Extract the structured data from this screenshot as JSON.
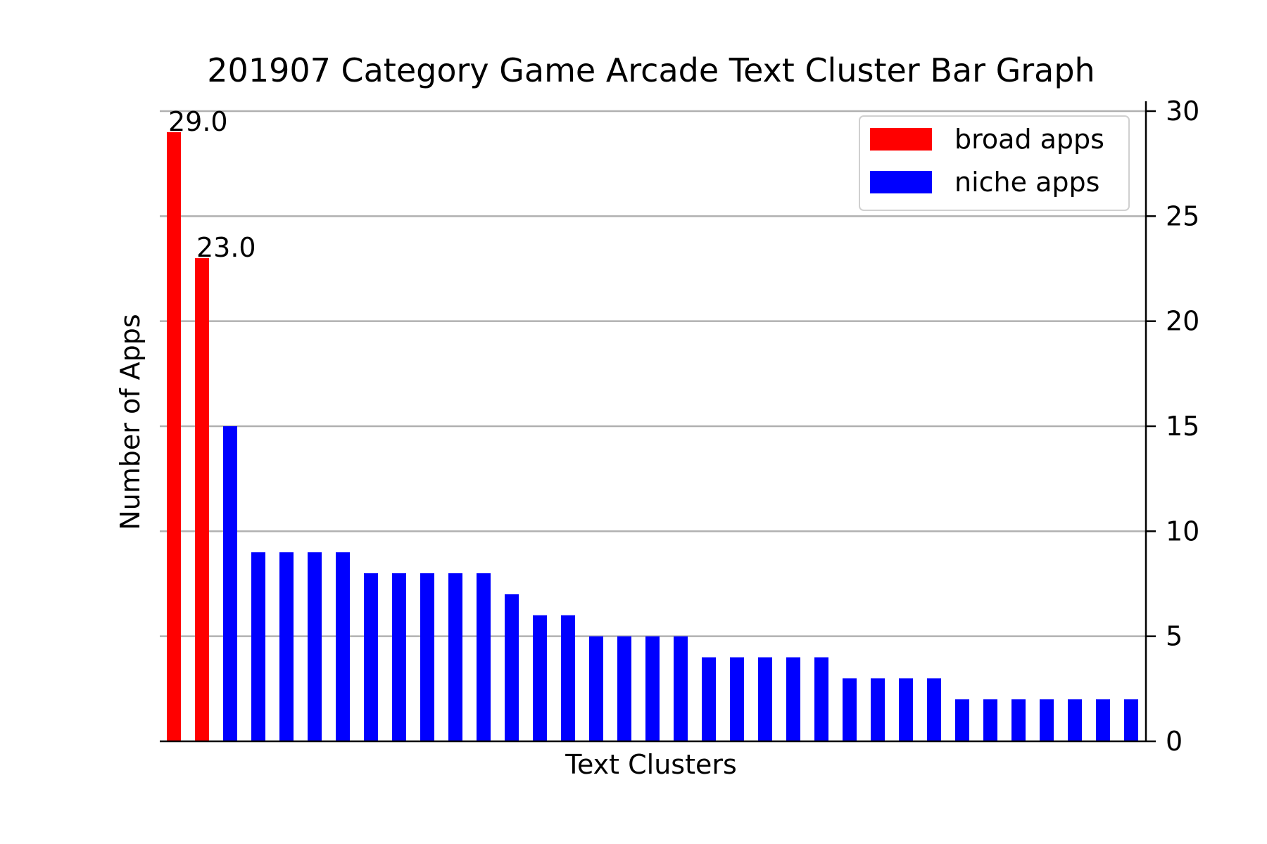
{
  "chart_data": {
    "type": "bar",
    "title": "201907 Category Game Arcade Text Cluster Bar Graph",
    "xlabel": "Text Clusters",
    "ylabel": "Number of Apps",
    "ylim": [
      0,
      30
    ],
    "yticks": [
      0,
      5,
      10,
      15,
      20,
      25,
      30
    ],
    "ytick_labels": [
      "0",
      "5",
      "10",
      "15",
      "20",
      "25",
      "30"
    ],
    "y_axis_side": "right",
    "grid": "horizontal",
    "legend_position": "top-right",
    "legend": [
      {
        "label": "broad apps",
        "color": "#ff0000"
      },
      {
        "label": "niche apps",
        "color": "#0000ff"
      }
    ],
    "values": [
      29,
      23,
      15,
      9,
      9,
      9,
      9,
      8,
      8,
      8,
      8,
      8,
      7,
      6,
      6,
      5,
      5,
      5,
      5,
      4,
      4,
      4,
      4,
      4,
      3,
      3,
      3,
      3,
      2,
      2,
      2,
      2,
      2,
      2,
      2
    ],
    "groups": [
      "broad",
      "broad",
      "niche",
      "niche",
      "niche",
      "niche",
      "niche",
      "niche",
      "niche",
      "niche",
      "niche",
      "niche",
      "niche",
      "niche",
      "niche",
      "niche",
      "niche",
      "niche",
      "niche",
      "niche",
      "niche",
      "niche",
      "niche",
      "niche",
      "niche",
      "niche",
      "niche",
      "niche",
      "niche",
      "niche",
      "niche",
      "niche",
      "niche",
      "niche",
      "niche"
    ],
    "data_labels": [
      {
        "index": 0,
        "text": "29.0"
      },
      {
        "index": 1,
        "text": "23.0"
      }
    ],
    "colors": {
      "broad": "#ff0000",
      "niche": "#0000ff",
      "grid": "#b0b0b0",
      "axis": "#000000"
    }
  }
}
